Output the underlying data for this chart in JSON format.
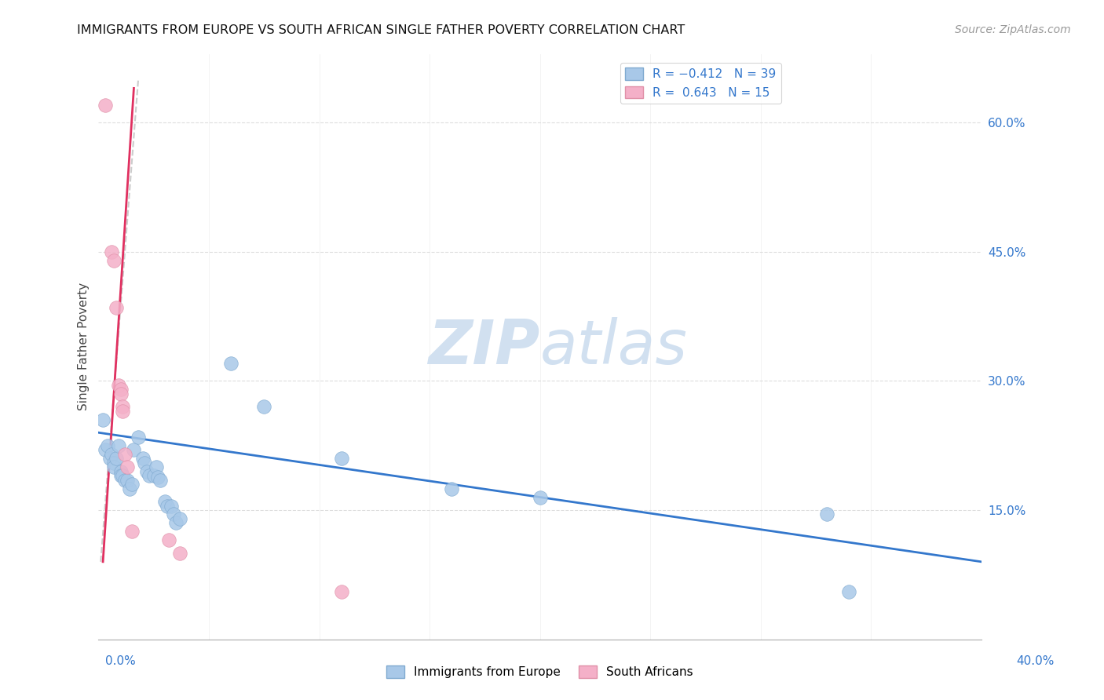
{
  "title": "IMMIGRANTS FROM EUROPE VS SOUTH AFRICAN SINGLE FATHER POVERTY CORRELATION CHART",
  "source": "Source: ZipAtlas.com",
  "ylabel": "Single Father Poverty",
  "ytick_values": [
    0.15,
    0.3,
    0.45,
    0.6
  ],
  "xlim": [
    0.0,
    0.4
  ],
  "ylim": [
    0.0,
    0.68
  ],
  "legend_label1": "Immigrants from Europe",
  "legend_label2": "South Africans",
  "blue_color": "#a8c8e8",
  "pink_color": "#f4b0c8",
  "blue_edge": "#80aad0",
  "pink_edge": "#e090a8",
  "trendline_blue_color": "#3377cc",
  "trendline_pink_color": "#e03060",
  "trendline_gray_color": "#cccccc",
  "watermark_color": "#ccddef",
  "blue_dots": [
    [
      0.002,
      0.255
    ],
    [
      0.003,
      0.22
    ],
    [
      0.004,
      0.225
    ],
    [
      0.005,
      0.21
    ],
    [
      0.006,
      0.215
    ],
    [
      0.007,
      0.205
    ],
    [
      0.007,
      0.2
    ],
    [
      0.008,
      0.21
    ],
    [
      0.009,
      0.225
    ],
    [
      0.01,
      0.195
    ],
    [
      0.01,
      0.19
    ],
    [
      0.011,
      0.19
    ],
    [
      0.012,
      0.185
    ],
    [
      0.013,
      0.185
    ],
    [
      0.014,
      0.175
    ],
    [
      0.015,
      0.18
    ],
    [
      0.016,
      0.22
    ],
    [
      0.018,
      0.235
    ],
    [
      0.02,
      0.21
    ],
    [
      0.021,
      0.205
    ],
    [
      0.022,
      0.195
    ],
    [
      0.023,
      0.19
    ],
    [
      0.025,
      0.19
    ],
    [
      0.026,
      0.2
    ],
    [
      0.027,
      0.188
    ],
    [
      0.028,
      0.185
    ],
    [
      0.03,
      0.16
    ],
    [
      0.031,
      0.155
    ],
    [
      0.033,
      0.155
    ],
    [
      0.034,
      0.145
    ],
    [
      0.035,
      0.135
    ],
    [
      0.037,
      0.14
    ],
    [
      0.06,
      0.32
    ],
    [
      0.075,
      0.27
    ],
    [
      0.11,
      0.21
    ],
    [
      0.16,
      0.175
    ],
    [
      0.2,
      0.165
    ],
    [
      0.33,
      0.145
    ],
    [
      0.34,
      0.055
    ]
  ],
  "pink_dots": [
    [
      0.003,
      0.62
    ],
    [
      0.006,
      0.45
    ],
    [
      0.007,
      0.44
    ],
    [
      0.008,
      0.385
    ],
    [
      0.009,
      0.295
    ],
    [
      0.01,
      0.29
    ],
    [
      0.01,
      0.285
    ],
    [
      0.011,
      0.27
    ],
    [
      0.011,
      0.265
    ],
    [
      0.012,
      0.215
    ],
    [
      0.013,
      0.2
    ],
    [
      0.015,
      0.125
    ],
    [
      0.032,
      0.115
    ],
    [
      0.037,
      0.1
    ],
    [
      0.11,
      0.055
    ]
  ],
  "gray_line": {
    "x0": 0.001,
    "y0": 0.09,
    "x1": 0.018,
    "y1": 0.65
  },
  "pink_line": {
    "x0": 0.002,
    "y0": 0.09,
    "x1": 0.016,
    "y1": 0.64
  },
  "blue_line": {
    "x0": 0.0,
    "y0": 0.24,
    "x1": 0.4,
    "y1": 0.09
  }
}
